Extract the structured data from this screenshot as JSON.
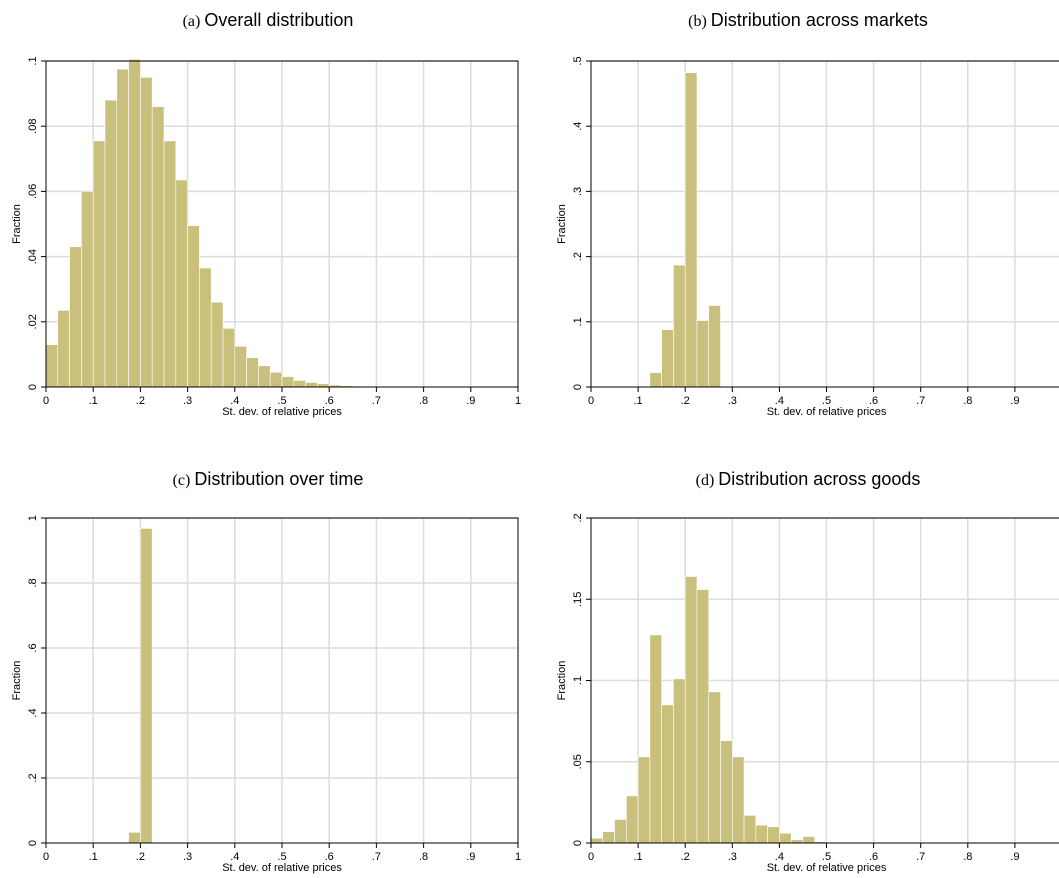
{
  "colors": {
    "bar": "#c8c07c",
    "grid": "#dcdcdc"
  },
  "chart_data": [
    {
      "type": "bar",
      "panel_letter": "(a)",
      "title": "Overall distribution",
      "xlabel": "St. dev. of relative prices",
      "ylabel": "Fraction",
      "xlim": [
        0,
        1
      ],
      "ylim": [
        0,
        0.1
      ],
      "xticks": [
        "0",
        ".1",
        ".2",
        ".3",
        ".4",
        ".5",
        ".6",
        ".7",
        ".8",
        ".9",
        "1"
      ],
      "yticks": [
        "0",
        ".02",
        ".04",
        ".06",
        ".08",
        ".1"
      ],
      "ytick_values": [
        0,
        0.02,
        0.04,
        0.06,
        0.08,
        0.1
      ],
      "bin_width": 0.025,
      "x": [
        0.0125,
        0.0375,
        0.0625,
        0.0875,
        0.1125,
        0.1375,
        0.1625,
        0.1875,
        0.2125,
        0.2375,
        0.2625,
        0.2875,
        0.3125,
        0.3375,
        0.3625,
        0.3875,
        0.4125,
        0.4375,
        0.4625,
        0.4875,
        0.5125,
        0.5375,
        0.5625,
        0.5875,
        0.6125,
        0.6375,
        0.6625
      ],
      "values": [
        0.013,
        0.0235,
        0.043,
        0.06,
        0.0755,
        0.088,
        0.0975,
        0.1005,
        0.095,
        0.086,
        0.0755,
        0.0635,
        0.0495,
        0.0365,
        0.026,
        0.018,
        0.0125,
        0.009,
        0.0065,
        0.0045,
        0.0032,
        0.002,
        0.0014,
        0.001,
        0.0006,
        0.0004,
        0.0002
      ]
    },
    {
      "type": "bar",
      "panel_letter": "(b)",
      "title": "Distribution across markets",
      "xlabel": "St. dev. of relative prices",
      "ylabel": "Fraction",
      "xlim": [
        0,
        1
      ],
      "ylim": [
        0,
        0.5
      ],
      "xticks": [
        "0",
        ".1",
        ".2",
        ".3",
        ".4",
        ".5",
        ".6",
        ".7",
        ".8",
        ".9",
        "1"
      ],
      "yticks": [
        "0",
        ".1",
        ".2",
        ".3",
        ".4",
        ".5"
      ],
      "ytick_values": [
        0,
        0.1,
        0.2,
        0.3,
        0.4,
        0.5
      ],
      "bin_width": 0.025,
      "x": [
        0.1375,
        0.1625,
        0.1875,
        0.2125,
        0.2375,
        0.2625
      ],
      "values": [
        0.022,
        0.088,
        0.187,
        0.482,
        0.102,
        0.125
      ]
    },
    {
      "type": "bar",
      "panel_letter": "(c)",
      "title": "Distribution over time",
      "xlabel": "St. dev. of relative prices",
      "ylabel": "Fraction",
      "xlim": [
        0,
        1
      ],
      "ylim": [
        0,
        1
      ],
      "xticks": [
        "0",
        ".1",
        ".2",
        ".3",
        ".4",
        ".5",
        ".6",
        ".7",
        ".8",
        ".9",
        "1"
      ],
      "yticks": [
        "0",
        ".2",
        ".4",
        ".6",
        ".8",
        "1"
      ],
      "ytick_values": [
        0,
        0.2,
        0.4,
        0.6,
        0.8,
        1
      ],
      "bin_width": 0.025,
      "x": [
        0.1875,
        0.2125
      ],
      "values": [
        0.033,
        0.968
      ]
    },
    {
      "type": "bar",
      "panel_letter": "(d)",
      "title": "Distribution across goods",
      "xlabel": "St. dev. of relative prices",
      "ylabel": "Fraction",
      "xlim": [
        0,
        1
      ],
      "ylim": [
        0,
        0.2
      ],
      "xticks": [
        "0",
        ".1",
        ".2",
        ".3",
        ".4",
        ".5",
        ".6",
        ".7",
        ".8",
        ".9",
        "1"
      ],
      "yticks": [
        "0",
        ".05",
        ".1",
        ".15",
        ".2"
      ],
      "ytick_values": [
        0,
        0.05,
        0.1,
        0.15,
        0.2
      ],
      "bin_width": 0.025,
      "x": [
        0.0125,
        0.0375,
        0.0625,
        0.0875,
        0.1125,
        0.1375,
        0.1625,
        0.1875,
        0.2125,
        0.2375,
        0.2625,
        0.2875,
        0.3125,
        0.3375,
        0.3625,
        0.3875,
        0.4125,
        0.4375,
        0.4625,
        0.4875,
        0.5125,
        0.5375,
        0.5625,
        0.5875
      ],
      "values": [
        0.003,
        0.007,
        0.0145,
        0.029,
        0.053,
        0.128,
        0.085,
        0.101,
        0.164,
        0.156,
        0.093,
        0.063,
        0.053,
        0.017,
        0.011,
        0.01,
        0.006,
        0.002,
        0.004,
        0.0008,
        0.0005,
        0.0004,
        0.0003,
        0.0002
      ]
    }
  ]
}
